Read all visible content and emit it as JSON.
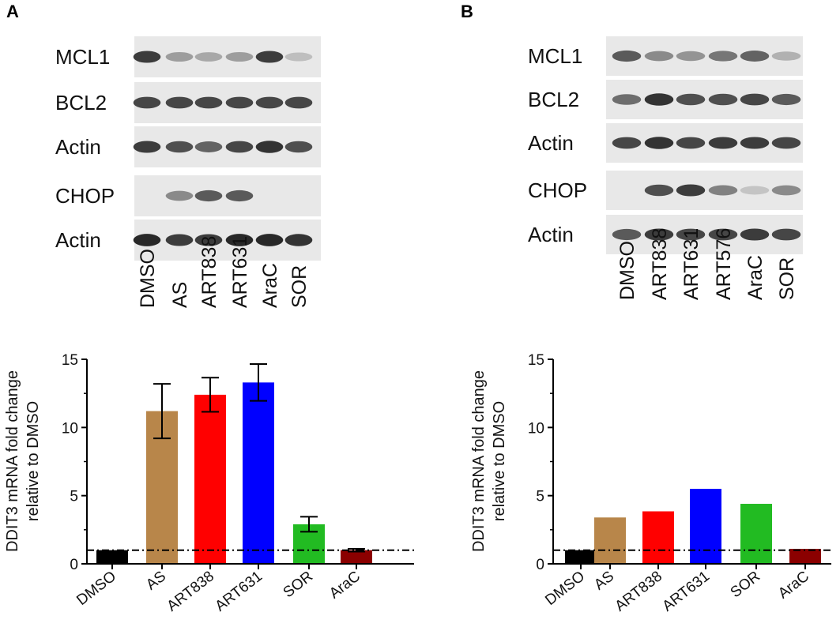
{
  "panels": [
    {
      "letter": "A",
      "blot": {
        "rows": [
          {
            "label": "MCL1",
            "intensities": [
              0.85,
              0.35,
              0.3,
              0.35,
              0.85,
              0.18
            ],
            "gap_before": false
          },
          {
            "label": "BCL2",
            "intensities": [
              0.8,
              0.8,
              0.8,
              0.8,
              0.8,
              0.8
            ],
            "gap_before": false
          },
          {
            "label": "Actin",
            "intensities": [
              0.85,
              0.75,
              0.65,
              0.8,
              0.9,
              0.75
            ],
            "gap_before": false
          },
          {
            "label": "CHOP",
            "intensities": [
              0.0,
              0.45,
              0.7,
              0.7,
              0.0,
              0.0
            ],
            "gap_before": true
          },
          {
            "label": "Actin",
            "intensities": [
              0.95,
              0.85,
              0.85,
              0.95,
              0.95,
              0.9
            ],
            "gap_before": false
          }
        ],
        "lanes": [
          "DMSO",
          "AS",
          "ART838",
          "ART631",
          "AraC",
          "SOR"
        ]
      },
      "chart": {
        "type": "bar",
        "categories": [
          "DMSO",
          "AS",
          "ART838",
          "ART631",
          "SOR",
          "AraC"
        ],
        "values": [
          1.0,
          11.2,
          12.4,
          13.3,
          2.9,
          1.0
        ],
        "errors": [
          0.05,
          2.0,
          1.25,
          1.35,
          0.55,
          0.1
        ],
        "colors": [
          "#000000",
          "#b8864a",
          "#ff0000",
          "#0000ff",
          "#22bb22",
          "#8b0000"
        ],
        "ylabel": "DDIT3 mRNA fold change relative to DMSO",
        "ylabel_lines": [
          "DDIT3 mRNA fold change",
          "relative to DMSO"
        ],
        "ylim": [
          0,
          15
        ],
        "yticks": [
          "0",
          "5",
          "10",
          "15"
        ],
        "reference_line": 1
      }
    },
    {
      "letter": "B",
      "blot": {
        "rows": [
          {
            "label": "MCL1",
            "intensities": [
              0.7,
              0.45,
              0.4,
              0.55,
              0.65,
              0.25
            ],
            "gap_before": false
          },
          {
            "label": "BCL2",
            "intensities": [
              0.6,
              0.9,
              0.75,
              0.75,
              0.8,
              0.7
            ],
            "gap_before": false
          },
          {
            "label": "Actin",
            "intensities": [
              0.8,
              0.9,
              0.8,
              0.85,
              0.85,
              0.8
            ],
            "gap_before": false
          },
          {
            "label": "CHOP",
            "intensities": [
              0.0,
              0.75,
              0.85,
              0.5,
              0.15,
              0.45
            ],
            "gap_before": true
          },
          {
            "label": "Actin",
            "intensities": [
              0.7,
              0.85,
              0.8,
              0.8,
              0.85,
              0.8
            ],
            "gap_before": false
          }
        ],
        "lanes": [
          "DMSO",
          "ART838",
          "ART631",
          "ART576",
          "AraC",
          "SOR"
        ]
      },
      "chart": {
        "type": "bar",
        "categories": [
          "DMSO",
          "AS",
          "ART838",
          "ART631",
          "SOR",
          "AraC"
        ],
        "values": [
          1.0,
          3.4,
          3.85,
          5.5,
          4.4,
          1.1
        ],
        "errors": [],
        "colors": [
          "#000000",
          "#b8864a",
          "#ff0000",
          "#0000ff",
          "#22bb22",
          "#8b0000"
        ],
        "ylabel": "DDIT3 mRNA fold change relative to DMSO",
        "ylabel_lines": [
          "DDIT3 mRNA fold change",
          "relative to DMSO"
        ],
        "ylim": [
          0,
          15
        ],
        "yticks": [
          "0",
          "5",
          "10",
          "15"
        ],
        "reference_line": 1
      }
    }
  ]
}
